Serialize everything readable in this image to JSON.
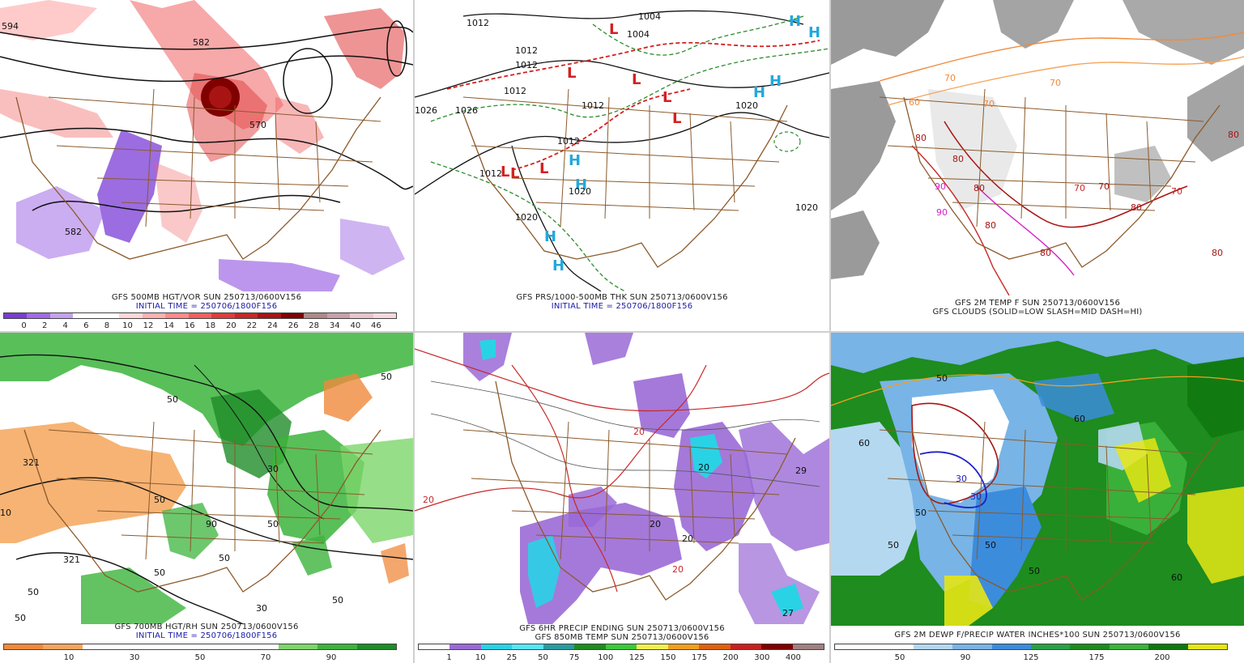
{
  "panels": [
    {
      "id": "p1",
      "caption1": "GFS 500MB HGT/VOR SUN 250713/0600V156",
      "caption2": "INITIAL TIME = 250706/1800F156",
      "colorbar": {
        "colors": [
          "#7a3cd6",
          "#a06ae6",
          "#c4a2ee",
          "#ffffff",
          "#ffffff",
          "#ffd6d6",
          "#ffb0b0",
          "#ff8a8a",
          "#f06060",
          "#e03c3c",
          "#c82828",
          "#a81414",
          "#800000",
          "#b08888",
          "#c9a0a8",
          "#e8c4cc",
          "#f6d8dc"
        ],
        "labels": [
          "0",
          "2",
          "4",
          "6",
          "8",
          "10",
          "12",
          "14",
          "16",
          "18",
          "20",
          "22",
          "24",
          "26",
          "28",
          "34",
          "40",
          "46"
        ]
      },
      "map_labels": [
        "582",
        "570",
        "582",
        "594"
      ]
    },
    {
      "id": "p2",
      "caption1": "GFS PRS/1000-500MB THK SUN 250713/0600V156",
      "caption2": "INITIAL TIME = 250706/1800F156",
      "map_labels": [
        "1004",
        "1004",
        "1012",
        "1012",
        "1012",
        "1012",
        "1012",
        "1012",
        "1012",
        "1020",
        "1020",
        "1020",
        "1026",
        "1026",
        "1020"
      ],
      "highs": [
        "H",
        "H",
        "H",
        "H",
        "H",
        "H",
        "H",
        "H"
      ],
      "lows": [
        "L",
        "L",
        "L",
        "L",
        "L",
        "L",
        "L",
        "L"
      ]
    },
    {
      "id": "p3",
      "caption1": "GFS 2M TEMP F SUN 250713/0600V156",
      "caption2": "GFS CLOUDS (SOLID=LOW SLASH=MID DASH=HI)",
      "map_labels": [
        "70",
        "70",
        "70",
        "70",
        "80",
        "80",
        "80",
        "90",
        "80",
        "90",
        "80",
        "70",
        "70",
        "80",
        "80",
        "80",
        "60"
      ]
    },
    {
      "id": "p4",
      "caption1": "GFS 700MB HGT/RH SUN 250713/0600V156",
      "caption2": "INITIAL TIME = 250706/1800F156",
      "colorbar": {
        "colors": [
          "#f08a3c",
          "#f5a65c",
          "#ffffff",
          "#ffffff",
          "#ffffff",
          "#ffffff",
          "#ffffff",
          "#7cd66a",
          "#3cb43c",
          "#1e8c28"
        ],
        "labels": [
          "10",
          "30",
          "50",
          "70",
          "90"
        ]
      },
      "map_labels": [
        "321",
        "50",
        "10",
        "50",
        "50",
        "321",
        "50",
        "50",
        "30",
        "50",
        "90",
        "50",
        "30",
        "50",
        "50"
      ]
    },
    {
      "id": "p5",
      "caption1": "GFS 6HR PRECIP ENDING SUN 250713/0600V156",
      "caption2": "GFS 850MB TEMP SUN 250713/0600V156",
      "colorbar": {
        "colors": [
          "#ffffff",
          "#9a6ad6",
          "#2ad2e6",
          "#58e6f2",
          "#2a9aa0",
          "#1e8c1e",
          "#3cc83c",
          "#f0f050",
          "#f0a020",
          "#e06010",
          "#c82020",
          "#800000",
          "#a08080"
        ],
        "labels": [
          "1",
          "10",
          "25",
          "50",
          "75",
          "100",
          "125",
          "150",
          "175",
          "200",
          "300",
          "400"
        ]
      },
      "map_labels": [
        "20",
        "20",
        "20",
        "20",
        "20",
        "29",
        "27",
        "20"
      ]
    },
    {
      "id": "p6",
      "caption1": "GFS 2M DEWP F/PRECIP WATER INCHES*100 SUN 250713/0600V156",
      "caption2": "",
      "colorbar": {
        "colors": [
          "#ffffff",
          "#ffffff",
          "#b4d8f0",
          "#78b4e6",
          "#3c8cdc",
          "#2aa046",
          "#1e8c1e",
          "#3cb43c",
          "#0f780f",
          "#e6e614"
        ],
        "labels": [
          "50",
          "90",
          "125",
          "175",
          "200"
        ]
      },
      "map_labels": [
        "50",
        "50",
        "50",
        "60",
        "30",
        "30",
        "50",
        "50",
        "60",
        "60"
      ]
    }
  ]
}
